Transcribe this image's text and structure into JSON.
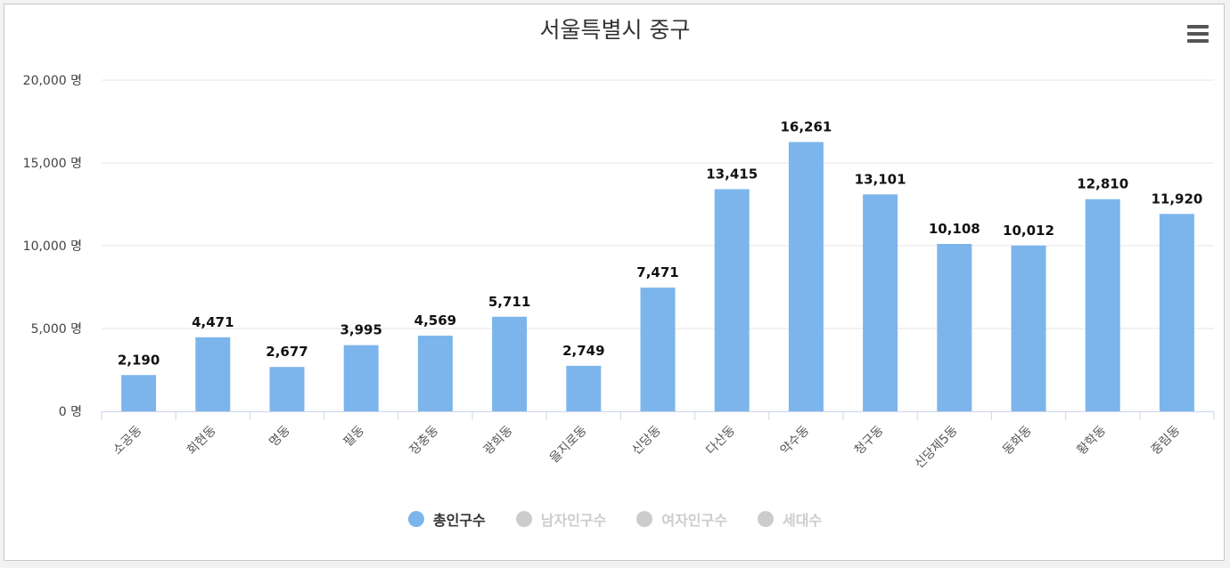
{
  "chart_data": {
    "type": "bar",
    "title": "서울특별시 중구",
    "categories": [
      "소공동",
      "회현동",
      "명동",
      "필동",
      "장충동",
      "광희동",
      "을지로동",
      "신당동",
      "다산동",
      "약수동",
      "청구동",
      "신당제5동",
      "동화동",
      "황학동",
      "중림동"
    ],
    "series": [
      {
        "name": "총인구수",
        "values": [
          2190,
          4471,
          2677,
          3995,
          4569,
          5711,
          2749,
          7471,
          13415,
          16261,
          13101,
          10108,
          10012,
          12810,
          11920
        ]
      }
    ],
    "data_labels": [
      "2,190",
      "4,471",
      "2,677",
      "3,995",
      "4,569",
      "5,711",
      "2,749",
      "7,471",
      "13,415",
      "16,261",
      "13,101",
      "10,108",
      "10,012",
      "12,810",
      "11,920"
    ],
    "y_ticks": [
      0,
      5000,
      10000,
      15000,
      20000
    ],
    "y_tick_labels": [
      "0 명",
      "5,000 명",
      "10,000 명",
      "15,000 명",
      "20,000 명"
    ],
    "ylim": [
      0,
      20000
    ],
    "grid": true,
    "legend_position": "bottom-center",
    "bar_color": "#7cb5ec"
  },
  "legend": {
    "items": [
      {
        "label": "총인구수",
        "color": "#7cb5ec",
        "text_color": "#333333",
        "active": true
      },
      {
        "label": "남자인구수",
        "color": "#cccccc",
        "text_color": "#cccccc",
        "active": false
      },
      {
        "label": "여자인구수",
        "color": "#cccccc",
        "text_color": "#cccccc",
        "active": false
      },
      {
        "label": "세대수",
        "color": "#cccccc",
        "text_color": "#cccccc",
        "active": false
      }
    ]
  },
  "menu": {
    "icon": "hamburger-menu-icon"
  }
}
